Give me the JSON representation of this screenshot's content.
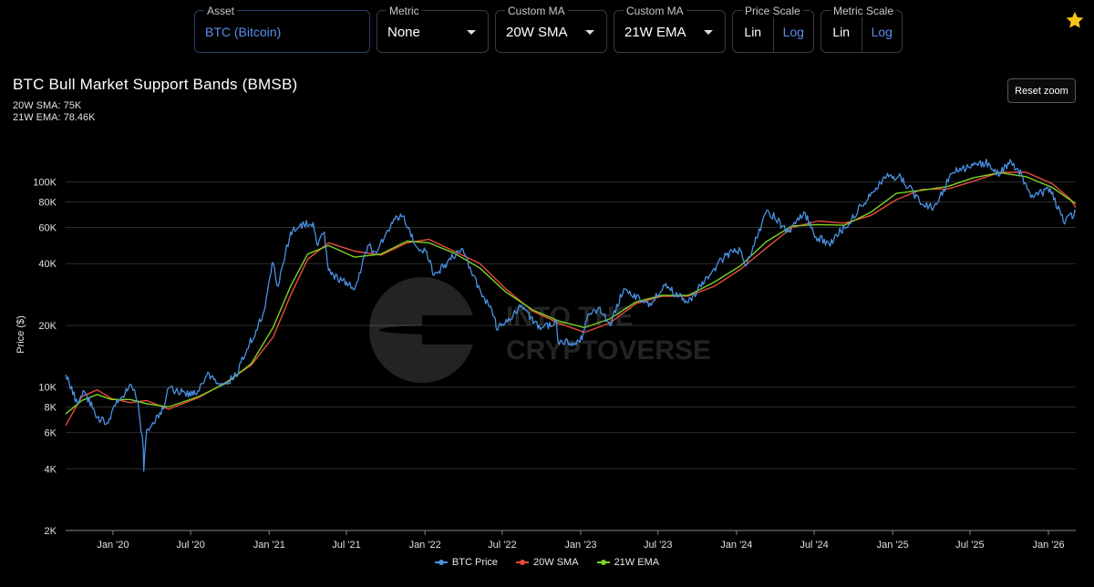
{
  "controls": {
    "asset": {
      "label": "Asset",
      "value": "BTC (Bitcoin)"
    },
    "metric": {
      "label": "Metric",
      "value": "None"
    },
    "ma1": {
      "label": "Custom MA",
      "value": "20W SMA"
    },
    "ma2": {
      "label": "Custom MA",
      "value": "21W EMA"
    },
    "price_scale": {
      "label": "Price Scale",
      "lin": "Lin",
      "log": "Log",
      "selected": "Log"
    },
    "metric_scale": {
      "label": "Metric Scale",
      "lin": "Lin",
      "log": "Log",
      "selected": "Log"
    },
    "favorite_icon": "star-icon",
    "colors": {
      "accent": "#5b8def",
      "star": "#f5c518"
    }
  },
  "reset_zoom": "Reset zoom",
  "watermark": {
    "line1": "INTO THE",
    "line2": "CRYPTOVERSE"
  },
  "chart_data": {
    "type": "line",
    "title": "BTC Bull Market Support Bands (BMSB)",
    "stats": [
      "20W SMA: 75K",
      "21W EMA: 78.46K"
    ],
    "ylabel": "Price ($)",
    "yscale": "log",
    "ylim": [
      2000,
      150000
    ],
    "xlim": [
      "2019-09-12",
      "2026-03-06"
    ],
    "x_ticks": [
      "Jan '20",
      "Jul '20",
      "Jan '21",
      "Jul '21",
      "Jan '22",
      "Jul '22",
      "Jan '23",
      "Jul '23",
      "Jan '24",
      "Jul '24",
      "Jan '25",
      "Jul '25",
      "Jan '26"
    ],
    "y_ticks": [
      {
        "v": 2000,
        "label": "2K"
      },
      {
        "v": 4000,
        "label": "4K"
      },
      {
        "v": 6000,
        "label": "6K"
      },
      {
        "v": 8000,
        "label": "8K"
      },
      {
        "v": 10000,
        "label": "10K"
      },
      {
        "v": 20000,
        "label": "20K"
      },
      {
        "v": 40000,
        "label": "40K"
      },
      {
        "v": 60000,
        "label": "60K"
      },
      {
        "v": 80000,
        "label": "80K"
      },
      {
        "v": 100000,
        "label": "100K"
      }
    ],
    "grid": true,
    "legend_position": "bottom",
    "series": [
      {
        "name": "BTC Price",
        "color": "#4a90e2",
        "points": [
          [
            "2019-09-12",
            11500
          ],
          [
            "2019-10-10",
            8300
          ],
          [
            "2019-10-26",
            9500
          ],
          [
            "2019-11-25",
            7100
          ],
          [
            "2019-12-18",
            6700
          ],
          [
            "2020-01-15",
            8700
          ],
          [
            "2020-02-12",
            10300
          ],
          [
            "2020-02-28",
            8600
          ],
          [
            "2020-03-12",
            5000
          ],
          [
            "2020-03-13",
            3900
          ],
          [
            "2020-03-20",
            6200
          ],
          [
            "2020-04-28",
            7800
          ],
          [
            "2020-05-08",
            9800
          ],
          [
            "2020-06-01",
            9500
          ],
          [
            "2020-07-15",
            9200
          ],
          [
            "2020-08-10",
            11800
          ],
          [
            "2020-09-08",
            10100
          ],
          [
            "2020-10-15",
            11400
          ],
          [
            "2020-11-10",
            15300
          ],
          [
            "2020-12-01",
            19000
          ],
          [
            "2020-12-20",
            23500
          ],
          [
            "2021-01-08",
            40500
          ],
          [
            "2021-01-22",
            31000
          ],
          [
            "2021-02-20",
            57000
          ],
          [
            "2021-03-13",
            61000
          ],
          [
            "2021-04-14",
            63500
          ],
          [
            "2021-04-25",
            49000
          ],
          [
            "2021-05-10",
            57000
          ],
          [
            "2021-05-20",
            37000
          ],
          [
            "2021-06-20",
            33000
          ],
          [
            "2021-07-20",
            30000
          ],
          [
            "2021-08-20",
            49000
          ],
          [
            "2021-09-10",
            45000
          ],
          [
            "2021-10-20",
            66000
          ],
          [
            "2021-11-10",
            68000
          ],
          [
            "2021-12-10",
            49000
          ],
          [
            "2022-01-05",
            46000
          ],
          [
            "2022-01-22",
            35000
          ],
          [
            "2022-03-28",
            47500
          ],
          [
            "2022-05-12",
            29000
          ],
          [
            "2022-06-15",
            21500
          ],
          [
            "2022-06-18",
            19000
          ],
          [
            "2022-08-13",
            24500
          ],
          [
            "2022-10-01",
            19400
          ],
          [
            "2022-11-05",
            21000
          ],
          [
            "2022-11-09",
            16500
          ],
          [
            "2022-12-30",
            16500
          ],
          [
            "2023-01-20",
            22500
          ],
          [
            "2023-02-15",
            24500
          ],
          [
            "2023-03-10",
            20000
          ],
          [
            "2023-04-12",
            30200
          ],
          [
            "2023-06-15",
            25000
          ],
          [
            "2023-07-14",
            31500
          ],
          [
            "2023-09-10",
            25800
          ],
          [
            "2023-10-24",
            34500
          ],
          [
            "2023-12-08",
            44000
          ],
          [
            "2024-01-10",
            46500
          ],
          [
            "2024-01-23",
            39000
          ],
          [
            "2024-03-14",
            73000
          ],
          [
            "2024-05-01",
            57000
          ],
          [
            "2024-06-07",
            71500
          ],
          [
            "2024-07-05",
            54000
          ],
          [
            "2024-08-05",
            50000
          ],
          [
            "2024-09-27",
            66000
          ],
          [
            "2024-11-12",
            89000
          ],
          [
            "2024-12-17",
            106000
          ],
          [
            "2025-01-20",
            106000
          ],
          [
            "2025-03-10",
            78000
          ],
          [
            "2025-04-08",
            76000
          ],
          [
            "2025-05-22",
            111000
          ],
          [
            "2025-07-14",
            122000
          ],
          [
            "2025-08-14",
            123500
          ],
          [
            "2025-09-01",
            108000
          ],
          [
            "2025-10-06",
            125000
          ],
          [
            "2025-10-30",
            108000
          ],
          [
            "2025-11-21",
            84000
          ],
          [
            "2026-01-05",
            93000
          ],
          [
            "2026-02-05",
            64000
          ],
          [
            "2026-02-20",
            70000
          ],
          [
            "2026-03-01",
            68000
          ],
          [
            "2026-03-06",
            72000
          ]
        ]
      },
      {
        "name": "20W SMA",
        "color": "#e74c3c",
        "points": [
          [
            "2019-09-12",
            6500
          ],
          [
            "2019-10-20",
            9000
          ],
          [
            "2019-11-25",
            9700
          ],
          [
            "2019-12-28",
            8800
          ],
          [
            "2020-02-10",
            8400
          ],
          [
            "2020-03-20",
            8600
          ],
          [
            "2020-05-10",
            7800
          ],
          [
            "2020-07-20",
            8900
          ],
          [
            "2020-09-20",
            10500
          ],
          [
            "2020-11-20",
            12800
          ],
          [
            "2021-01-10",
            17500
          ],
          [
            "2021-02-20",
            28000
          ],
          [
            "2021-04-01",
            42000
          ],
          [
            "2021-05-20",
            50500
          ],
          [
            "2021-07-20",
            46000
          ],
          [
            "2021-09-20",
            44000
          ],
          [
            "2021-11-20",
            50500
          ],
          [
            "2022-01-10",
            52500
          ],
          [
            "2022-03-10",
            46000
          ],
          [
            "2022-05-10",
            40000
          ],
          [
            "2022-07-10",
            30000
          ],
          [
            "2022-09-10",
            23500
          ],
          [
            "2022-11-10",
            20500
          ],
          [
            "2023-01-10",
            18500
          ],
          [
            "2023-03-10",
            20500
          ],
          [
            "2023-05-10",
            25500
          ],
          [
            "2023-07-10",
            27700
          ],
          [
            "2023-09-10",
            27800
          ],
          [
            "2023-11-10",
            31000
          ],
          [
            "2024-01-10",
            37500
          ],
          [
            "2024-03-10",
            47500
          ],
          [
            "2024-05-10",
            60000
          ],
          [
            "2024-07-10",
            64500
          ],
          [
            "2024-09-10",
            63000
          ],
          [
            "2024-11-10",
            68500
          ],
          [
            "2025-01-10",
            82000
          ],
          [
            "2025-03-10",
            92000
          ],
          [
            "2025-05-10",
            92500
          ],
          [
            "2025-07-10",
            101000
          ],
          [
            "2025-09-10",
            111500
          ],
          [
            "2025-11-10",
            111500
          ],
          [
            "2026-01-10",
            98000
          ],
          [
            "2026-02-20",
            83000
          ],
          [
            "2026-03-06",
            75000
          ]
        ]
      },
      {
        "name": "21W EMA",
        "color": "#7ed321",
        "points": [
          [
            "2019-09-12",
            7400
          ],
          [
            "2019-10-20",
            8600
          ],
          [
            "2019-11-25",
            9200
          ],
          [
            "2019-12-28",
            8700
          ],
          [
            "2020-02-10",
            8700
          ],
          [
            "2020-03-20",
            8300
          ],
          [
            "2020-05-10",
            8000
          ],
          [
            "2020-07-20",
            9000
          ],
          [
            "2020-09-20",
            10400
          ],
          [
            "2020-11-20",
            13000
          ],
          [
            "2021-01-10",
            19500
          ],
          [
            "2021-02-20",
            31000
          ],
          [
            "2021-04-01",
            44500
          ],
          [
            "2021-05-20",
            49000
          ],
          [
            "2021-07-20",
            43000
          ],
          [
            "2021-09-20",
            44500
          ],
          [
            "2021-11-20",
            51500
          ],
          [
            "2022-01-10",
            50500
          ],
          [
            "2022-03-10",
            45000
          ],
          [
            "2022-05-10",
            38000
          ],
          [
            "2022-07-10",
            29000
          ],
          [
            "2022-09-10",
            23800
          ],
          [
            "2022-11-10",
            21000
          ],
          [
            "2023-01-10",
            19500
          ],
          [
            "2023-03-10",
            21500
          ],
          [
            "2023-05-10",
            26000
          ],
          [
            "2023-07-10",
            28000
          ],
          [
            "2023-09-10",
            28000
          ],
          [
            "2023-11-10",
            32500
          ],
          [
            "2024-01-10",
            39000
          ],
          [
            "2024-03-10",
            51000
          ],
          [
            "2024-05-10",
            61000
          ],
          [
            "2024-07-10",
            62000
          ],
          [
            "2024-09-10",
            61500
          ],
          [
            "2024-11-10",
            71000
          ],
          [
            "2025-01-10",
            88000
          ],
          [
            "2025-03-10",
            91000
          ],
          [
            "2025-05-10",
            95000
          ],
          [
            "2025-07-10",
            105000
          ],
          [
            "2025-09-10",
            111000
          ],
          [
            "2025-11-10",
            106000
          ],
          [
            "2026-01-10",
            94000
          ],
          [
            "2026-02-20",
            82000
          ],
          [
            "2026-03-06",
            78460
          ]
        ]
      }
    ]
  }
}
